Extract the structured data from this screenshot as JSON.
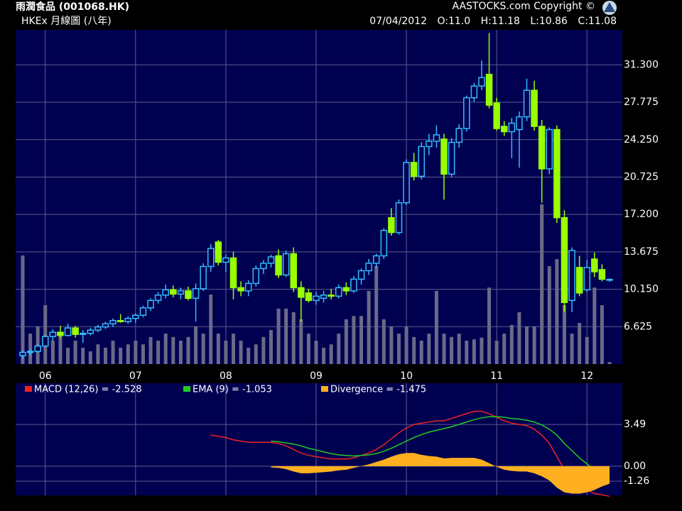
{
  "chart_data": [
    {
      "type": "candlestick",
      "title": "雨潤食品 (001068.HK)",
      "subtitle": "HKEx 月線圖 (八年)",
      "source": "AASTOCKS.com Copyright ©",
      "quote": [
        "07/04/2012",
        "O:11.0",
        "H:11.18",
        "L:10.86",
        "C:11.08"
      ],
      "categories": [
        null,
        null,
        null,
        "06",
        null,
        null,
        null,
        null,
        null,
        null,
        null,
        null,
        null,
        null,
        null,
        "07",
        null,
        null,
        null,
        null,
        null,
        null,
        null,
        null,
        null,
        null,
        null,
        "08",
        null,
        null,
        null,
        null,
        null,
        null,
        null,
        null,
        null,
        null,
        null,
        "09",
        null,
        null,
        null,
        null,
        null,
        null,
        null,
        null,
        null,
        null,
        null,
        "10",
        null,
        null,
        null,
        null,
        null,
        null,
        null,
        null,
        null,
        null,
        null,
        "11",
        null,
        null,
        null,
        null,
        null,
        null,
        null,
        null,
        null,
        null,
        null,
        "12",
        null,
        null,
        null
      ],
      "open": [
        3.9,
        4.2,
        4.3,
        4.8,
        5.7,
        6.1,
        5.8,
        6.5,
        5.9,
        6.0,
        6.3,
        6.6,
        6.9,
        7.2,
        7.1,
        7.4,
        7.7,
        8.4,
        9.1,
        9.6,
        10.1,
        9.7,
        10.0,
        9.3,
        10.2,
        12.3,
        14.6,
        12.7,
        13.1,
        10.3,
        10.0,
        10.7,
        12.1,
        12.6,
        13.3,
        11.5,
        13.5,
        10.3,
        9.8,
        9.1,
        9.3,
        9.6,
        9.5,
        10.3,
        10.0,
        11.1,
        11.9,
        12.6,
        13.3,
        16.9,
        15.5,
        18.3,
        22.1,
        20.8,
        23.6,
        24.1,
        24.3,
        21.0,
        24.0,
        25.3,
        28.2,
        29.3,
        30.4,
        27.7,
        25.5,
        25.0,
        25.2,
        26.4,
        28.9,
        25.5,
        21.5,
        25.2,
        16.9,
        9.1,
        12.2,
        10.1,
        13.0,
        12.0,
        11.0
      ],
      "high": [
        4.4,
        4.5,
        5.0,
        5.9,
        6.4,
        6.7,
        6.9,
        6.7,
        6.3,
        6.5,
        6.8,
        7.1,
        7.4,
        7.8,
        7.6,
        7.9,
        8.6,
        9.3,
        9.9,
        10.6,
        10.5,
        10.3,
        10.4,
        10.7,
        12.6,
        14.4,
        14.8,
        13.4,
        13.7,
        10.9,
        11.0,
        12.4,
        12.9,
        13.4,
        13.9,
        13.8,
        14.1,
        10.9,
        10.2,
        9.9,
        10.0,
        10.2,
        10.6,
        10.8,
        11.4,
        12.1,
        13.0,
        13.5,
        15.9,
        17.8,
        18.6,
        22.4,
        23.0,
        24.0,
        24.8,
        25.6,
        24.8,
        24.4,
        25.7,
        28.4,
        29.6,
        31.7,
        34.3,
        28.2,
        26.0,
        26.3,
        26.9,
        30.0,
        29.8,
        26.1,
        25.4,
        25.6,
        17.6,
        14.1,
        13.3,
        12.9,
        13.6,
        12.5,
        11.18
      ],
      "low": [
        3.6,
        3.9,
        4.2,
        4.7,
        5.3,
        5.6,
        5.7,
        5.6,
        5.1,
        5.8,
        6.1,
        6.4,
        6.6,
        7.0,
        6.9,
        7.0,
        7.5,
        8.1,
        8.8,
        9.3,
        9.4,
        9.2,
        9.1,
        7.1,
        10.0,
        11.8,
        12.4,
        11.8,
        9.2,
        9.5,
        9.5,
        10.4,
        11.6,
        12.2,
        11.2,
        11.3,
        9.9,
        7.1,
        8.9,
        8.7,
        8.9,
        9.2,
        9.3,
        9.6,
        9.8,
        10.6,
        11.5,
        12.2,
        13.0,
        15.2,
        15.3,
        18.1,
        20.4,
        20.5,
        22.8,
        23.5,
        18.6,
        20.7,
        23.5,
        25.0,
        27.8,
        28.9,
        27.2,
        25.1,
        24.6,
        22.5,
        21.6,
        26.0,
        25.1,
        18.3,
        21.0,
        16.4,
        8.0,
        8.0,
        9.5,
        9.9,
        11.3,
        10.9,
        10.86
      ],
      "close": [
        4.2,
        4.3,
        4.8,
        5.7,
        6.1,
        5.8,
        6.5,
        5.9,
        6.0,
        6.3,
        6.6,
        6.9,
        7.2,
        7.1,
        7.4,
        7.7,
        8.4,
        9.1,
        9.6,
        10.1,
        9.7,
        10.0,
        9.3,
        10.2,
        12.3,
        14.0,
        12.7,
        13.1,
        10.3,
        10.0,
        10.7,
        12.1,
        12.6,
        13.2,
        11.5,
        13.5,
        10.3,
        9.4,
        9.1,
        9.5,
        9.6,
        9.5,
        10.3,
        10.0,
        11.1,
        11.9,
        12.6,
        13.3,
        15.7,
        15.5,
        18.3,
        22.1,
        20.8,
        23.6,
        24.1,
        24.7,
        21.0,
        24.0,
        25.3,
        28.2,
        29.3,
        30.1,
        27.5,
        25.3,
        25.0,
        25.8,
        26.4,
        28.9,
        25.5,
        21.5,
        25.2,
        16.9,
        8.9,
        13.8,
        9.8,
        12.2,
        11.8,
        11.1,
        11.08
      ],
      "volume": [
        32.5,
        9.1,
        11.3,
        17.6,
        7.0,
        9.1,
        4.9,
        7.0,
        4.9,
        3.8,
        5.9,
        4.9,
        7.0,
        4.9,
        5.9,
        7.0,
        5.9,
        8.1,
        7.0,
        9.1,
        8.1,
        7.0,
        8.1,
        11.3,
        9.1,
        20.8,
        9.1,
        7.0,
        9.1,
        7.0,
        4.9,
        5.9,
        8.1,
        10.2,
        16.6,
        16.6,
        15.5,
        13.4,
        9.1,
        7.0,
        4.9,
        5.9,
        9.1,
        13.4,
        14.4,
        14.4,
        21.9,
        29.3,
        13.4,
        11.3,
        9.1,
        11.3,
        8.1,
        7.0,
        9.1,
        21.9,
        9.1,
        8.1,
        9.1,
        7.0,
        7.4,
        7.9,
        22.9,
        7.0,
        9.1,
        11.7,
        15.5,
        11.3,
        11.3,
        47.8,
        29.3,
        31.4,
        17.6,
        9.1,
        12.3,
        8.1,
        22.9,
        17.6,
        0.6
      ],
      "volume_lim": [
        0,
        100
      ],
      "up_color": "#33bbff",
      "down_color": "#99ff00",
      "volume_color": "#6a6a88",
      "ylim": [
        3.1,
        34.6
      ],
      "yticks": [
        {
          "value": 31.3,
          "label": "31.300"
        },
        27.775,
        {
          "value": 24.25,
          "label": "24.250"
        },
        20.725,
        {
          "value": 17.2,
          "label": "17.200"
        },
        13.675,
        {
          "value": 10.15,
          "label": "10.150"
        },
        6.625
      ],
      "grid": true
    },
    {
      "type": "line",
      "ylim": [
        -2.45,
        6.95
      ],
      "yticks": [
        3.49,
        {
          "value": 0,
          "label": "0.00"
        },
        -1.26
      ],
      "grid": true,
      "series": [
        {
          "name": "MACD (12,26) = -2.528",
          "color": "#ee2222",
          "values": [
            null,
            null,
            null,
            null,
            null,
            null,
            null,
            null,
            null,
            null,
            null,
            null,
            null,
            null,
            null,
            null,
            null,
            null,
            null,
            null,
            null,
            null,
            null,
            null,
            null,
            2.6,
            2.5,
            2.4,
            2.2,
            2.1,
            2.0,
            2.0,
            2.0,
            2.0,
            1.9,
            1.7,
            1.4,
            1.1,
            0.9,
            0.8,
            0.7,
            0.6,
            0.6,
            0.6,
            0.7,
            0.9,
            1.1,
            1.4,
            1.8,
            2.3,
            2.8,
            3.2,
            3.5,
            3.6,
            3.7,
            3.8,
            3.8,
            4.0,
            4.2,
            4.4,
            4.6,
            4.6,
            4.4,
            4.1,
            3.8,
            3.6,
            3.5,
            3.4,
            3.1,
            2.6,
            1.9,
            0.8,
            -0.3,
            -1.0,
            -1.6,
            -2.0,
            -2.3,
            -2.4,
            -2.528
          ]
        },
        {
          "name": "EMA (9) = -1.053",
          "color": "#22cc22",
          "values": [
            null,
            null,
            null,
            null,
            null,
            null,
            null,
            null,
            null,
            null,
            null,
            null,
            null,
            null,
            null,
            null,
            null,
            null,
            null,
            null,
            null,
            null,
            null,
            null,
            null,
            null,
            null,
            null,
            null,
            null,
            null,
            null,
            null,
            2.1,
            2.05,
            1.95,
            1.85,
            1.7,
            1.5,
            1.35,
            1.2,
            1.05,
            0.95,
            0.9,
            0.85,
            0.9,
            0.95,
            1.05,
            1.25,
            1.5,
            1.8,
            2.1,
            2.4,
            2.65,
            2.85,
            3.0,
            3.15,
            3.3,
            3.5,
            3.7,
            3.9,
            4.05,
            4.15,
            4.15,
            4.1,
            4.0,
            3.95,
            3.85,
            3.7,
            3.45,
            3.1,
            2.6,
            1.9,
            1.3,
            0.7,
            0.2,
            -0.3,
            -0.7,
            -1.053
          ]
        },
        {
          "name": "Divergence = -1.475",
          "color": "#ffb020",
          "kind": "area",
          "values": [
            null,
            null,
            null,
            null,
            null,
            null,
            null,
            null,
            null,
            null,
            null,
            null,
            null,
            null,
            null,
            null,
            null,
            null,
            null,
            null,
            null,
            null,
            null,
            null,
            null,
            null,
            null,
            null,
            null,
            null,
            null,
            null,
            null,
            -0.1,
            -0.15,
            -0.25,
            -0.45,
            -0.6,
            -0.6,
            -0.55,
            -0.5,
            -0.45,
            -0.35,
            -0.3,
            -0.15,
            0.0,
            0.15,
            0.35,
            0.55,
            0.8,
            1.0,
            1.1,
            1.1,
            0.95,
            0.85,
            0.8,
            0.65,
            0.7,
            0.7,
            0.7,
            0.7,
            0.55,
            0.25,
            -0.05,
            -0.3,
            -0.4,
            -0.45,
            -0.45,
            -0.6,
            -0.85,
            -1.2,
            -1.8,
            -2.2,
            -2.3,
            -2.3,
            -2.2,
            -2.0,
            -1.7,
            -1.475
          ]
        }
      ]
    }
  ]
}
